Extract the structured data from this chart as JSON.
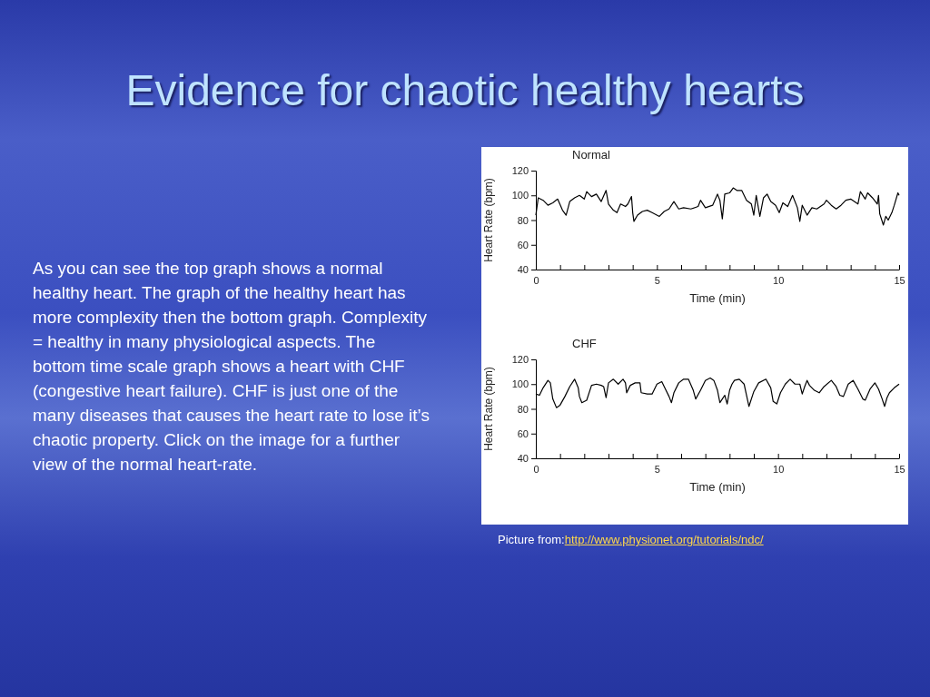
{
  "chart_data": [
    {
      "type": "other",
      "title": "Evidence for chaotic healthy hearts",
      "annotations": [
        "As you can see the top graph shows a normal healthy heart.  The graph of the healthy heart has more complexity then the bottom graph.  Complexity = healthy in many physiological aspects.  The bottom time scale graph shows a heart with CHF (congestive heart failure).  CHF is just one of the many diseases that causes the heart rate to lose it’s chaotic property. Click on the image for a further view of the normal heart-rate."
      ]
    },
    {
      "type": "line",
      "title": "Normal",
      "xlabel": "Time (min)",
      "ylabel": "Heart Rate (bpm)",
      "xlim": [
        0,
        15
      ],
      "ylim": [
        40,
        120
      ],
      "xticks": [
        0,
        {
          "value": 1,
          "label": null
        },
        {
          "value": 2,
          "label": null
        },
        {
          "value": 3,
          "label": null
        },
        {
          "value": 4,
          "label": null
        },
        5,
        {
          "value": 6,
          "label": null
        },
        {
          "value": 7,
          "label": null
        },
        {
          "value": 8,
          "label": null
        },
        {
          "value": 9,
          "label": null
        },
        10,
        {
          "value": 11,
          "label": null
        },
        {
          "value": 12,
          "label": null
        },
        {
          "value": 13,
          "label": null
        },
        {
          "value": 14,
          "label": null
        },
        15
      ],
      "yticks": [
        40,
        60,
        80,
        100,
        120
      ],
      "series": [
        {
          "color": "#000000",
          "x": [
            0,
            0.1,
            0.3,
            0.5,
            0.7,
            0.9,
            1.1,
            1.25,
            1.4,
            1.6,
            1.8,
            2.0,
            2.1,
            2.3,
            2.5,
            2.7,
            2.9,
            3.0,
            3.2,
            3.35,
            3.5,
            3.7,
            3.8,
            3.95,
            4.0,
            4.05,
            4.2,
            4.4,
            4.6,
            4.8,
            5.1,
            5.3,
            5.5,
            5.7,
            5.9,
            6.1,
            6.4,
            6.7,
            6.8,
            7.0,
            7.3,
            7.5,
            7.6,
            7.7,
            7.8,
            8.0,
            8.15,
            8.3,
            8.5,
            8.7,
            8.9,
            9.0,
            9.1,
            9.25,
            9.4,
            9.55,
            9.7,
            9.9,
            10.05,
            10.2,
            10.4,
            10.6,
            10.8,
            10.9,
            11.0,
            11.2,
            11.4,
            11.6,
            11.9,
            12.0,
            12.2,
            12.4,
            12.6,
            12.8,
            13.0,
            13.3,
            13.4,
            13.6,
            13.7,
            13.9,
            14.1,
            14.15,
            14.2,
            14.35,
            14.45,
            14.55,
            14.7,
            14.8,
            14.95,
            15.0
          ],
          "values": [
            84,
            98,
            96,
            92,
            94,
            97,
            88,
            84,
            95,
            98,
            100,
            97,
            103,
            99,
            101,
            95,
            104,
            93,
            88,
            86,
            93,
            91,
            93,
            99,
            86,
            79,
            84,
            87,
            88,
            86,
            83,
            87,
            89,
            95,
            89,
            90,
            89,
            91,
            96,
            90,
            92,
            101,
            96,
            81,
            101,
            102,
            106,
            104,
            104,
            96,
            93,
            84,
            100,
            83,
            98,
            101,
            95,
            92,
            86,
            94,
            91,
            100,
            90,
            79,
            92,
            84,
            90,
            89,
            93,
            96,
            92,
            89,
            92,
            96,
            97,
            93,
            103,
            97,
            102,
            98,
            93,
            100,
            85,
            76,
            83,
            80,
            86,
            92,
            102,
            100
          ]
        }
      ]
    },
    {
      "type": "line",
      "title": "CHF",
      "xlabel": "Time (min)",
      "ylabel": "Heart Rate (bpm)",
      "xlim": [
        0,
        15
      ],
      "ylim": [
        40,
        120
      ],
      "xticks": [
        0,
        {
          "value": 1,
          "label": null
        },
        {
          "value": 2,
          "label": null
        },
        {
          "value": 3,
          "label": null
        },
        {
          "value": 4,
          "label": null
        },
        5,
        {
          "value": 6,
          "label": null
        },
        {
          "value": 7,
          "label": null
        },
        {
          "value": 8,
          "label": null
        },
        {
          "value": 9,
          "label": null
        },
        10,
        {
          "value": 11,
          "label": null
        },
        {
          "value": 12,
          "label": null
        },
        {
          "value": 13,
          "label": null
        },
        {
          "value": 14,
          "label": null
        },
        15
      ],
      "yticks": [
        40,
        60,
        80,
        100,
        120
      ],
      "annotations": [
        "Picture from:http://www.physionet.org/tutorials/ndc/"
      ],
      "series": [
        {
          "color": "#000000",
          "x": [
            0,
            0.15,
            0.3,
            0.5,
            0.6,
            0.7,
            0.85,
            1.0,
            1.2,
            1.4,
            1.6,
            1.75,
            1.8,
            1.9,
            2.1,
            2.3,
            2.5,
            2.7,
            2.8,
            2.9,
            3.0,
            3.2,
            3.4,
            3.6,
            3.7,
            3.75,
            3.9,
            4.1,
            4.3,
            4.35,
            4.6,
            4.8,
            5.0,
            5.2,
            5.3,
            5.5,
            5.6,
            5.7,
            5.9,
            6.1,
            6.3,
            6.5,
            6.6,
            6.8,
            7.0,
            7.2,
            7.35,
            7.5,
            7.6,
            7.7,
            7.8,
            7.9,
            8.0,
            8.1,
            8.2,
            8.4,
            8.6,
            8.7,
            8.8,
            9.0,
            9.2,
            9.5,
            9.7,
            9.8,
            9.95,
            10.1,
            10.3,
            10.5,
            10.7,
            10.9,
            11.0,
            11.1,
            11.2,
            11.3,
            11.5,
            11.7,
            11.9,
            12.2,
            12.4,
            12.55,
            12.7,
            12.9,
            13.1,
            13.3,
            13.5,
            13.6,
            13.8,
            14.0,
            14.15,
            14.3,
            14.4,
            14.5,
            14.6,
            14.8,
            15.0
          ],
          "values": [
            92,
            91,
            97,
            103,
            101,
            88,
            81,
            83,
            90,
            98,
            104,
            97,
            90,
            85,
            87,
            99,
            100,
            99,
            98,
            89,
            101,
            104,
            100,
            104,
            101,
            93,
            99,
            101,
            101,
            93,
            92,
            92,
            100,
            102,
            98,
            90,
            85,
            93,
            101,
            104,
            104,
            95,
            88,
            95,
            103,
            105,
            103,
            95,
            85,
            88,
            91,
            84,
            95,
            100,
            103,
            104,
            100,
            91,
            82,
            94,
            101,
            104,
            97,
            86,
            84,
            93,
            100,
            104,
            100,
            100,
            92,
            98,
            103,
            99,
            95,
            93,
            98,
            103,
            98,
            91,
            90,
            100,
            103,
            96,
            88,
            87,
            96,
            101,
            96,
            88,
            82,
            89,
            93,
            97,
            100
          ]
        }
      ]
    }
  ]
}
